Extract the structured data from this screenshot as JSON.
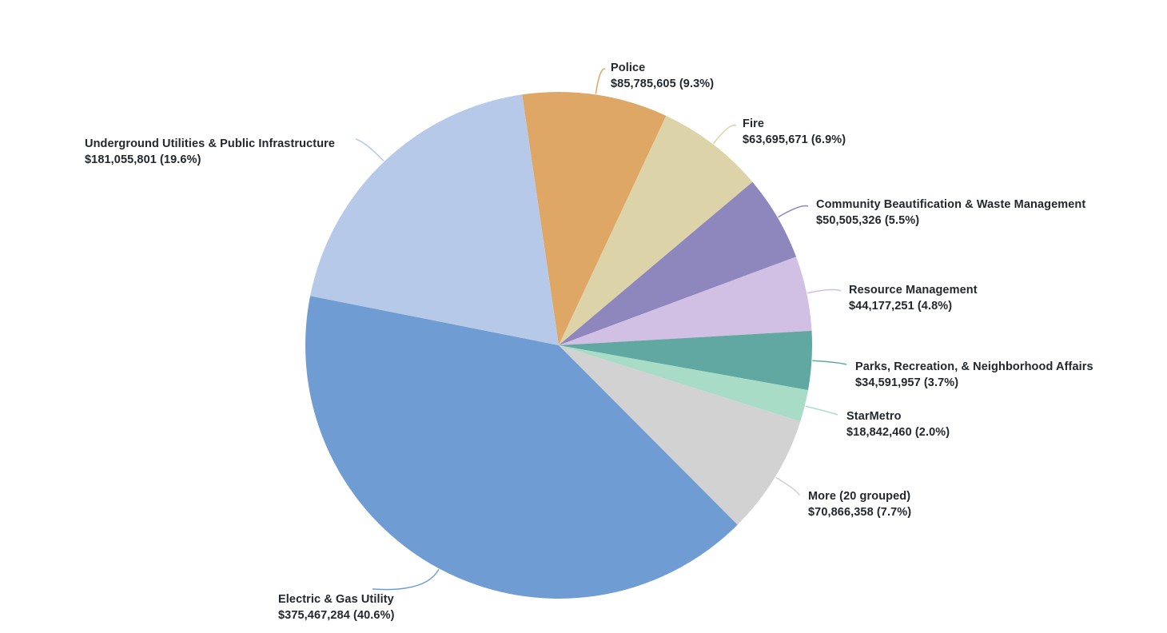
{
  "page": {
    "background": "#ffffff",
    "text_color": "#23282e"
  },
  "chart_data": {
    "type": "pie",
    "title": "",
    "legend_position": "none",
    "start_angle_deg": -8.3,
    "direction": "clockwise",
    "total": 924987713,
    "slice_ids": [
      "police",
      "fire",
      "community-beautification",
      "resource-management",
      "parks-recreation",
      "starmetro",
      "more-grouped",
      "electric-gas-utility",
      "underground-utilities"
    ],
    "categories": [
      "Police",
      "Fire",
      "Community Beautification & Waste Management",
      "Resource Management",
      "Parks, Recreation, & Neighborhood Affairs",
      "StarMetro",
      "More (20 grouped)",
      "Electric & Gas Utility",
      "Underground Utilities & Public Infrastructure"
    ],
    "values": [
      85785605,
      63695671,
      50505326,
      44177251,
      34591957,
      18842460,
      70866358,
      375467284,
      181055801
    ],
    "percents": [
      9.3,
      6.9,
      5.5,
      4.8,
      3.7,
      2.0,
      7.7,
      40.6,
      19.6
    ],
    "value_labels": [
      "$85,785,605 (9.3%)",
      "$63,695,671 (6.9%)",
      "$50,505,326 (5.5%)",
      "$44,177,251 (4.8%)",
      "$34,591,957 (3.7%)",
      "$18,842,460 (2.0%)",
      "$70,866,358 (7.7%)",
      "$375,467,284 (40.6%)",
      "$181,055,801 (19.6%)"
    ],
    "colors": [
      "#dfa765",
      "#ddd3a8",
      "#8d87bd",
      "#d2bfe4",
      "#60a8a1",
      "#a9dcc6",
      "#d2d2d2",
      "#6f9cd2",
      "#b7c9e9"
    ]
  }
}
